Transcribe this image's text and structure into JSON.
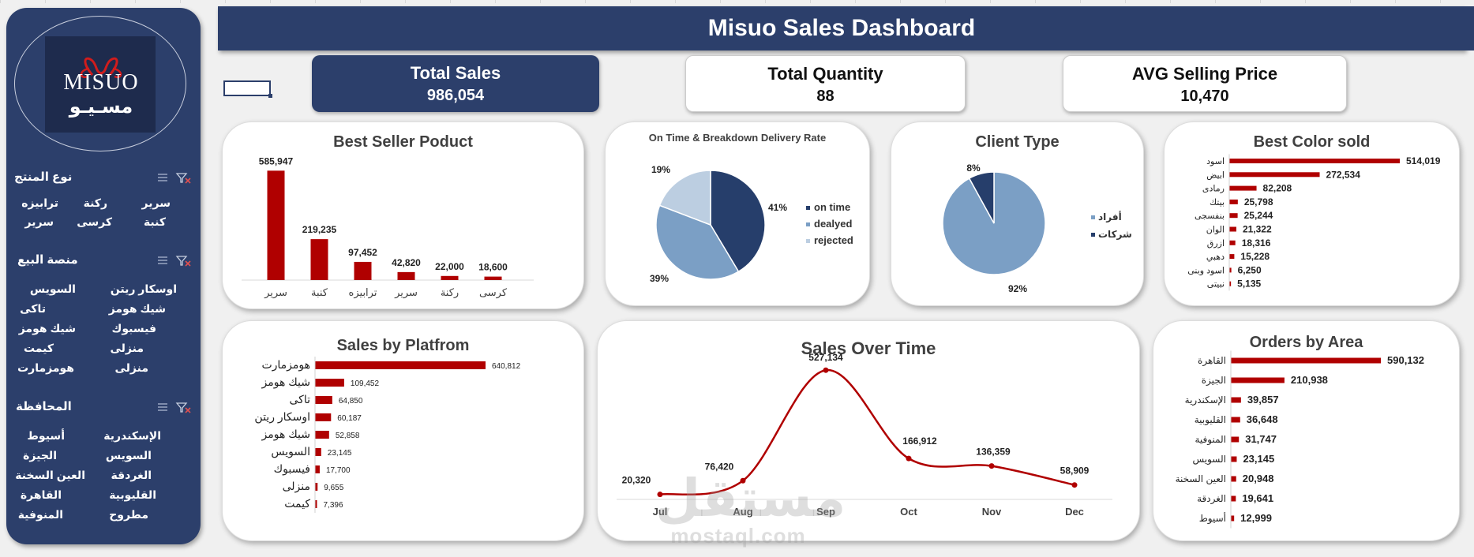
{
  "header": {
    "title": "Misuo Sales Dashboard"
  },
  "logo": {
    "en": "MISUO",
    "ar": "مسـيـو"
  },
  "slicers": [
    {
      "title": "نوع المنتج",
      "items": [
        "سرير",
        "ركنة",
        "ترابيزه",
        "كنبة",
        "كرسى",
        "سرير"
      ]
    },
    {
      "title": "منصة البيع",
      "items": [
        "اوسكار ريتن",
        "السويس",
        "شيك هومز",
        "تاكى",
        "فيسبوك",
        "شيك هومز",
        "منزلى",
        "كيمت",
        "منزلى",
        "هومزمارت"
      ]
    },
    {
      "title": "المحافظة",
      "items": [
        "الإسكندرية",
        "أسيوط",
        "السويس",
        "الجيزة",
        "الغردقة",
        "العين السخنة",
        "القليوبية",
        "القاهرة",
        "مطروح",
        "المنوفية"
      ]
    }
  ],
  "kpis": [
    {
      "title": "Total Sales",
      "value": "986,054"
    },
    {
      "title": "Total Quantity",
      "value": "88"
    },
    {
      "title": "AVG Selling Price",
      "value": "10,470"
    }
  ],
  "colors": {
    "navy": "#2c3f6b",
    "bar_red": "#b00000",
    "pie_dark": "#263e6b",
    "pie_mid": "#7b9fc5",
    "pie_light": "#bccee1"
  },
  "chart_data": [
    {
      "type": "bar",
      "title": "Best Seller Poduct",
      "categories": [
        "سرير",
        "كنبة",
        "ترابيزه",
        "سرير",
        "ركنة",
        "كرسى"
      ],
      "values": [
        585947,
        219235,
        97452,
        42820,
        22000,
        18600
      ],
      "value_labels": [
        "585,947",
        "219,235",
        "97,452",
        "42,820",
        "22,000",
        "18,600"
      ],
      "ylim": [
        0,
        600000
      ]
    },
    {
      "type": "pie",
      "title": "On Time & Breakdown Delivery Rate",
      "labels": [
        "on time",
        "dealyed",
        "rejected"
      ],
      "values": [
        41,
        39,
        19
      ],
      "value_labels": [
        "41%",
        "39%",
        "19%"
      ],
      "legend": "right"
    },
    {
      "type": "pie",
      "title": "Client Type",
      "labels": [
        "أفراد",
        "شركات"
      ],
      "values": [
        92,
        8
      ],
      "value_labels": [
        "92%",
        "8%"
      ],
      "legend": "right"
    },
    {
      "type": "bar",
      "orientation": "horizontal",
      "title": "Best Color sold",
      "categories": [
        "اسود",
        "ابيض",
        "رمادى",
        "بيتك",
        "بنفسجى",
        "الوان",
        "ازرق",
        "دهبي",
        "اسود وبنى",
        "نبيتى"
      ],
      "values": [
        514019,
        272534,
        82208,
        25798,
        25244,
        21322,
        18316,
        15228,
        6250,
        5135
      ],
      "value_labels": [
        "514,019",
        "272,534",
        "82,208",
        "25,798",
        "25,244",
        "21,322",
        "18,316",
        "15,228",
        "6,250",
        "5,135"
      ]
    },
    {
      "type": "bar",
      "orientation": "horizontal",
      "title": "Sales by Platfrom",
      "categories": [
        "هومزمارت",
        "شيك هومز",
        "تاكى",
        "اوسكار ريتن",
        "شيك هومز",
        "السويس",
        "فيسبوك",
        "منزلى",
        "كيمت"
      ],
      "values": [
        640812,
        109452,
        64850,
        60187,
        52858,
        23145,
        17700,
        9655,
        7396
      ],
      "value_labels": [
        "640,812",
        "109,452",
        "64,850",
        "60,187",
        "52,858",
        "23,145",
        "17,700",
        "9,655",
        "7,396"
      ]
    },
    {
      "type": "line",
      "title": "Sales Over Time",
      "x": [
        "Jul",
        "Aug",
        "Sep",
        "Oct",
        "Nov",
        "Dec"
      ],
      "values": [
        20320,
        76420,
        527134,
        166912,
        136359,
        58909
      ],
      "value_labels": [
        "20,320",
        "76,420",
        "527,134",
        "166,912",
        "136,359",
        "58,909"
      ],
      "ylim": [
        0,
        560000
      ]
    },
    {
      "type": "bar",
      "orientation": "horizontal",
      "title": "Orders by Area",
      "categories": [
        "القاهرة",
        "الجيزة",
        "الإسكندرية",
        "القليوبية",
        "المنوفية",
        "السويس",
        "العين السخنة",
        "الغردقة",
        "أسيوط"
      ],
      "values": [
        590132,
        210938,
        39857,
        36648,
        31747,
        23145,
        20948,
        19641,
        12999
      ],
      "value_labels": [
        "590,132",
        "210,938",
        "39,857",
        "36,648",
        "31,747",
        "23,145",
        "20,948",
        "19,641",
        "12,999"
      ]
    }
  ],
  "watermark": {
    "ar": "مستقل",
    "en": "mostaql.com"
  }
}
